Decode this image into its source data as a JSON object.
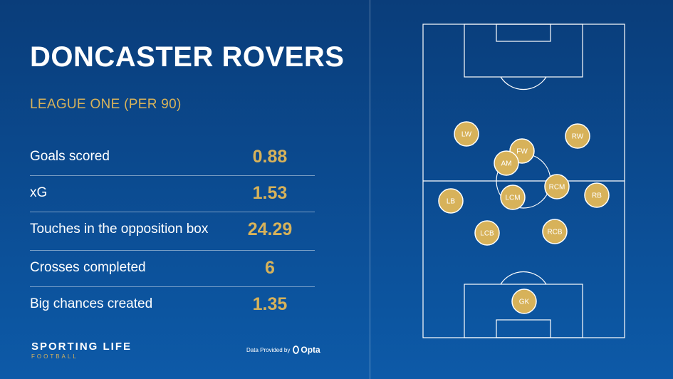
{
  "header": {
    "team": "DONCASTER ROVERS",
    "subtitle": "LEAGUE ONE (PER 90)"
  },
  "stats": [
    {
      "label": "Goals scored",
      "value": "0.88"
    },
    {
      "label": "xG",
      "value": "1.53"
    },
    {
      "label": "Touches in the opposition box",
      "value": "24.29"
    },
    {
      "label": "Crosses completed",
      "value": "6"
    },
    {
      "label": "Big chances created",
      "value": "1.35"
    }
  ],
  "formation": {
    "positions": [
      "LW",
      "RW",
      "FW",
      "AM",
      "RCM",
      "LCM",
      "LB",
      "RB",
      "LCB",
      "RCB",
      "GK"
    ]
  },
  "footer": {
    "brand": "SPORTING LIFE",
    "brand_sub": "FOOTBALL",
    "credit": "Data Provided by",
    "provider": "Opta"
  },
  "colors": {
    "accent": "#d7b25a",
    "background": "#0b4a8f",
    "marker": "#d7b25a"
  }
}
